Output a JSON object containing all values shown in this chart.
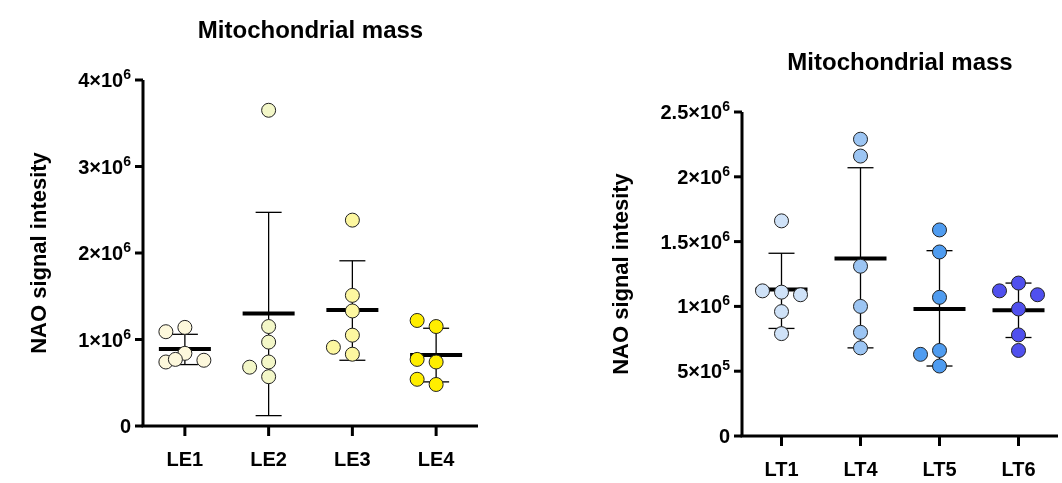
{
  "chart_data": [
    {
      "type": "scatter",
      "title": "Mitochondrial mass",
      "ylabel": "NAO signal intesity",
      "categories": [
        "LE1",
        "LE2",
        "LE3",
        "LE4"
      ],
      "ylim": [
        0,
        4000000
      ],
      "yticks": [
        {
          "value": 0,
          "label": "0"
        },
        {
          "value": 1000000,
          "label": "1×10$^{6}$"
        },
        {
          "value": 2000000,
          "label": "2×10$^{6}$"
        },
        {
          "value": 3000000,
          "label": "3×10$^{6}$"
        },
        {
          "value": 4000000,
          "label": "4×10$^{6}$"
        }
      ],
      "grid": false,
      "series": [
        {
          "color": "#fdf8dc",
          "marker": "circle",
          "x": [
            "LE1",
            "LE1",
            "LE1",
            "LE1",
            "LE1",
            "LE1"
          ],
          "values": [
            1140000,
            1090000,
            840000,
            740000,
            760000,
            770000
          ]
        },
        {
          "color": "#f3f7c8",
          "marker": "circle",
          "x": [
            "LE2",
            "LE2",
            "LE2",
            "LE2",
            "LE2",
            "LE2"
          ],
          "values": [
            3650000,
            1150000,
            970000,
            740000,
            570000,
            680000
          ]
        },
        {
          "color": "#fdf7a0",
          "marker": "circle",
          "x": [
            "LE3",
            "LE3",
            "LE3",
            "LE3",
            "LE3",
            "LE3"
          ],
          "values": [
            2380000,
            1510000,
            1330000,
            1050000,
            830000,
            910000
          ]
        },
        {
          "color": "#ffee00",
          "marker": "circle",
          "x": [
            "LE4",
            "LE4",
            "LE4",
            "LE4",
            "LE4",
            "LE4"
          ],
          "values": [
            1150000,
            1220000,
            740000,
            770000,
            480000,
            540000
          ]
        },
        {
          "type": "box",
          "color": "#000000",
          "boxes": [
            {
              "low": 710000,
              "q1": 890000,
              "median": 890000,
              "q3": 890000,
              "high": 1060000
            },
            {
              "low": 120000,
              "q1": 1300000,
              "median": 1300000,
              "q3": 1300000,
              "high": 2470000
            },
            {
              "low": 760000,
              "q1": 1340000,
              "median": 1340000,
              "q3": 1340000,
              "high": 1910000
            },
            {
              "low": 510000,
              "q1": 820000,
              "median": 820000,
              "q3": 820000,
              "high": 1130000
            }
          ]
        }
      ]
    },
    {
      "type": "scatter",
      "title": "Mitochondrial mass",
      "ylabel": "NAO signal intesity",
      "categories": [
        "LT1",
        "LT4",
        "LT5",
        "LT6"
      ],
      "ylim": [
        0,
        2500000
      ],
      "yticks": [
        {
          "value": 0,
          "label": "0"
        },
        {
          "value": 500000,
          "label": "5×10$^{5}$"
        },
        {
          "value": 1000000,
          "label": "1×10$^{6}$"
        },
        {
          "value": 1500000,
          "label": "1.5×10$^{6}$"
        },
        {
          "value": 2000000,
          "label": "2×10$^{6}$"
        },
        {
          "value": 2500000,
          "label": "2.5×10$^{6}$"
        }
      ],
      "grid": false,
      "series": [
        {
          "color": "#cfe2f8",
          "marker": "circle",
          "x": [
            "LT1",
            "LT1",
            "LT1",
            "LT1",
            "LT1",
            "LT1"
          ],
          "values": [
            1660000,
            1110000,
            1120000,
            1090000,
            960000,
            790000
          ]
        },
        {
          "color": "#9cc5f3",
          "marker": "circle",
          "x": [
            "LT4",
            "LT4",
            "LT4",
            "LT4",
            "LT4",
            "LT4"
          ],
          "values": [
            2290000,
            2160000,
            1310000,
            1000000,
            800000,
            680000
          ]
        },
        {
          "color": "#4f9cf0",
          "marker": "circle",
          "x": [
            "LT5",
            "LT5",
            "LT5",
            "LT5",
            "LT5",
            "LT5"
          ],
          "values": [
            1590000,
            1420000,
            1070000,
            660000,
            540000,
            630000
          ]
        },
        {
          "color": "#5050ee",
          "marker": "circle",
          "x": [
            "LT6",
            "LT6",
            "LT6",
            "LT6",
            "LT6",
            "LT6"
          ],
          "values": [
            1180000,
            1120000,
            1090000,
            980000,
            780000,
            660000
          ]
        },
        {
          "type": "box",
          "color": "#000000",
          "boxes": [
            {
              "low": 830000,
              "q1": 1130000,
              "median": 1130000,
              "q3": 1130000,
              "high": 1410000
            },
            {
              "low": 680000,
              "q1": 1370000,
              "median": 1370000,
              "q3": 1370000,
              "high": 2070000
            },
            {
              "low": 540000,
              "q1": 980000,
              "median": 980000,
              "q3": 980000,
              "high": 1430000
            },
            {
              "low": 760000,
              "q1": 970000,
              "median": 970000,
              "q3": 970000,
              "high": 1180000
            }
          ]
        }
      ]
    }
  ]
}
